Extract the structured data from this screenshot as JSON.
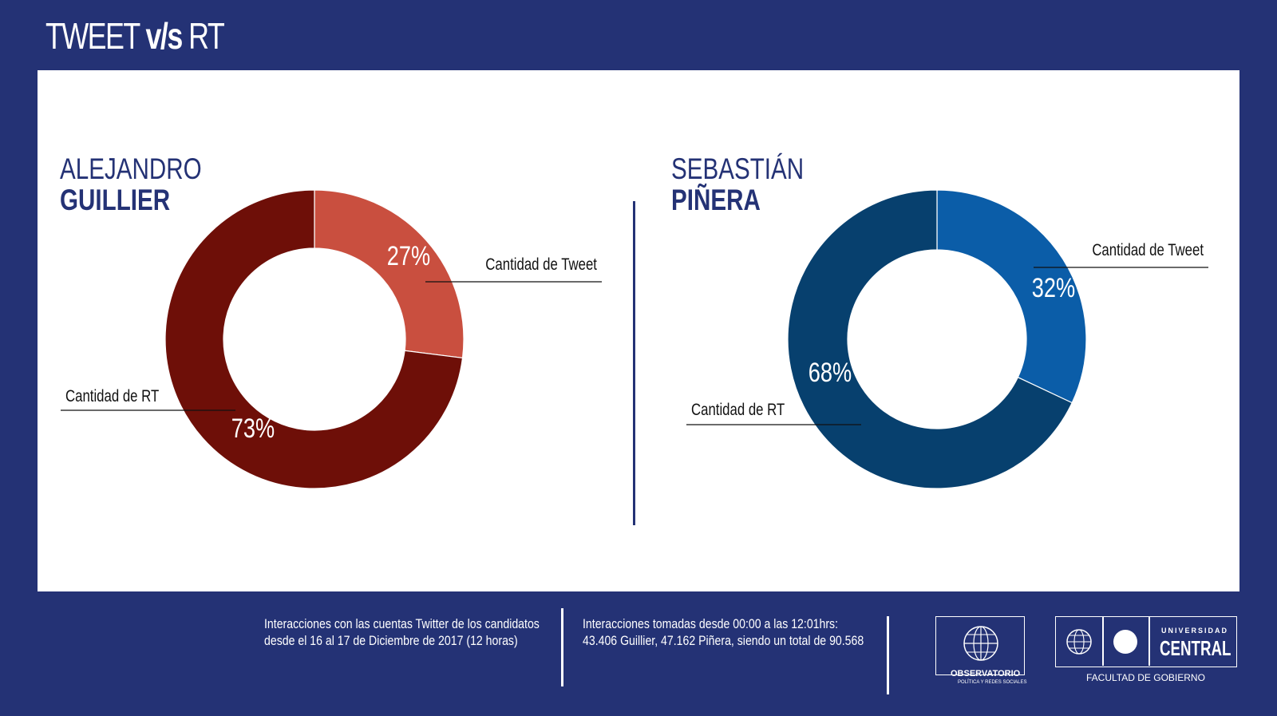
{
  "header": {
    "title_part1": "TWEET ",
    "title_bold": "v/s",
    "title_part2": " RT"
  },
  "colors": {
    "background": "#243275",
    "guillier_tweet": "#c94f3f",
    "guillier_rt": "#6e0f08",
    "pinera_tweet": "#0b5da8",
    "pinera_rt": "#07406e"
  },
  "candidates": [
    {
      "first_name": "ALEJANDRO",
      "last_name": "GUILLIER"
    },
    {
      "first_name": "SEBASTIÁN",
      "last_name": "PIÑERA"
    }
  ],
  "chart_data": [
    {
      "type": "pie",
      "title": "ALEJANDRO GUILLIER",
      "labels": [
        "Cantidad de Tweet",
        "Cantidad de RT"
      ],
      "values": [
        27,
        73
      ],
      "value_labels": [
        "27%",
        "73%"
      ],
      "colors": [
        "#c94f3f",
        "#6e0f08"
      ]
    },
    {
      "type": "pie",
      "title": "SEBASTIÁN PIÑERA",
      "labels": [
        "Cantidad de Tweet",
        "Cantidad de RT"
      ],
      "values": [
        32,
        68
      ],
      "value_labels": [
        "32%",
        "68%"
      ],
      "colors": [
        "#0b5da8",
        "#07406e"
      ]
    }
  ],
  "footer": {
    "note1_line1": "Interacciones con las cuentas Twitter de los candidatos",
    "note1_line2": "desde el 16 al 17 de Diciembre de 2017 (12 horas)",
    "note2_line1": "Interacciones tomadas desde 00:00 a las 12:01hrs:",
    "note2_line2": "43.406 Guillier, 47.162 Piñera, siendo un total de 90.568",
    "logo1_name": "OBSERVATORIO",
    "logo1_sub": "POLÍTICA Y REDES SOCIALES",
    "logo2_top": "UNIVERSIDAD",
    "logo2_name": "CENTRAL",
    "logo2_sub": "FACULTAD DE GOBIERNO"
  }
}
